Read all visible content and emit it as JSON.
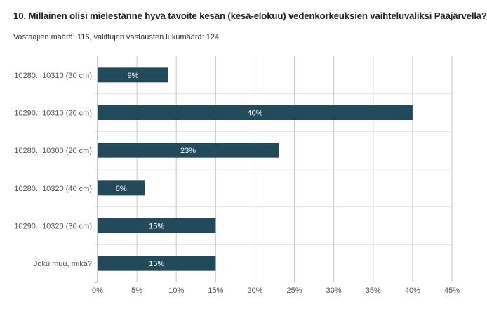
{
  "chart_data": {
    "type": "bar",
    "orientation": "horizontal",
    "title": "10. Millainen olisi mielestänne hyvä tavoite kesän (kesä-elokuu) vedenkorkeuksien vaihteluväliksi Pääjärvellä?",
    "subtitle": "Vastaajien määrä: 116, valittujen vastausten lukumäärä: 124",
    "categories": [
      "10280...10310 (30 cm)",
      "10290...10310 (20 cm)",
      "10280...10300 (20 cm)",
      "10280...10320 (40 cm)",
      "10290...10320 (30 cm)",
      "Joku muu, mikä?"
    ],
    "values": [
      9,
      40,
      23,
      6,
      15,
      15
    ],
    "data_labels": [
      "9%",
      "40%",
      "23%",
      "6%",
      "15%",
      "15%"
    ],
    "xlim": [
      0,
      45
    ],
    "xticks": [
      0,
      5,
      10,
      15,
      20,
      25,
      30,
      35,
      40,
      45
    ],
    "xtick_labels": [
      "0%",
      "5%",
      "10%",
      "15%",
      "20%",
      "25%",
      "30%",
      "35%",
      "40%",
      "45%"
    ],
    "grid": true,
    "bar_color": "#234a5a"
  }
}
